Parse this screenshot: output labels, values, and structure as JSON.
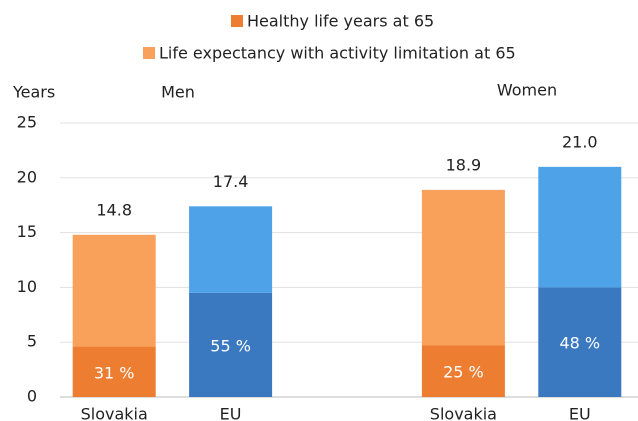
{
  "chart_data": {
    "type": "stacked-bar",
    "legend_position": "top",
    "y_axis_label": "Years",
    "groups": [
      "Men",
      "Women"
    ],
    "categories": [
      "Slovakia",
      "EU",
      null,
      "Slovakia",
      "EU"
    ],
    "series": [
      {
        "name": "Healthy life years at 65",
        "color": "#ed7d31",
        "colors": [
          "#ed7d31",
          "#3a78c0",
          null,
          "#ed7d31",
          "#3a78c0"
        ],
        "values": [
          4.6,
          9.5,
          null,
          4.7,
          10.0
        ]
      },
      {
        "name": "Life expectancy with activity limitation at 65",
        "color": "#f9a05a",
        "colors": [
          "#f9a05a",
          "#4ea3e8",
          null,
          "#f9a05a",
          "#4ea3e8"
        ],
        "values": [
          10.2,
          7.9,
          null,
          14.2,
          11.0
        ]
      }
    ],
    "totals": [
      14.8,
      17.4,
      null,
      18.9,
      21.0
    ],
    "total_labels": [
      "14.8",
      "17.4",
      null,
      "18.9",
      "21.0"
    ],
    "shares": [
      31,
      55,
      null,
      25,
      48
    ],
    "share_labels": [
      "31 %",
      "55 %",
      null,
      "25 %",
      "48 %"
    ],
    "ylim": [
      0,
      25
    ],
    "yticks": [
      0,
      5,
      10,
      15,
      20,
      25
    ],
    "grid": true
  }
}
